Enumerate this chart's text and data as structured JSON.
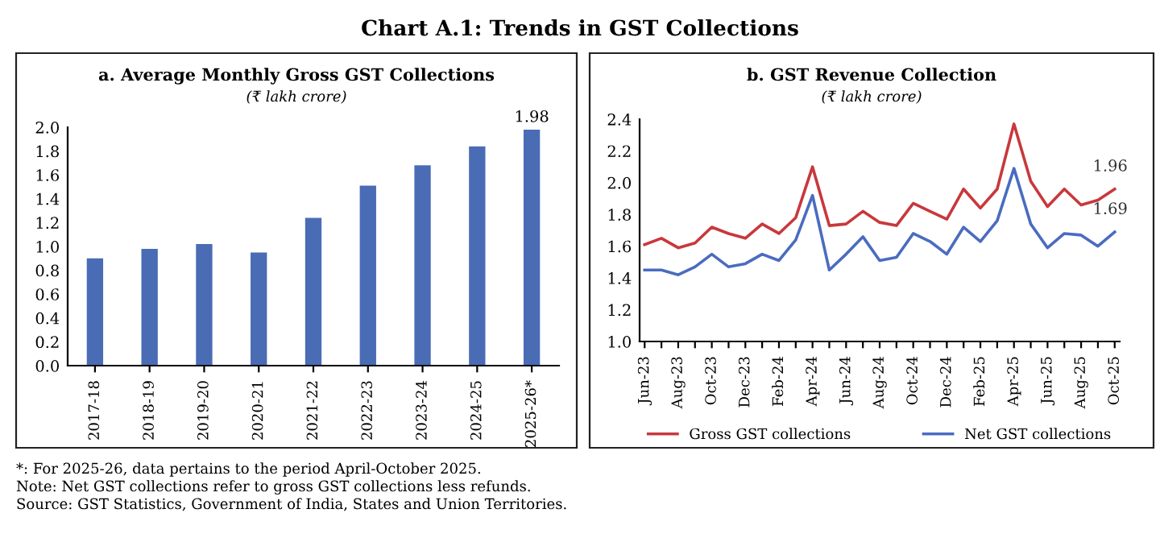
{
  "chart_data": [
    {
      "type": "bar",
      "title": "a. Average Monthly Gross GST Collections",
      "subtitle": "(₹ lakh crore)",
      "categories": [
        "2017-18",
        "2018-19",
        "2019-20",
        "2020-21",
        "2021-22",
        "2022-23",
        "2023-24",
        "2024-25",
        "2025-26*"
      ],
      "values": [
        0.9,
        0.98,
        1.02,
        0.95,
        1.24,
        1.51,
        1.68,
        1.84,
        1.98
      ],
      "value_labels": [
        null,
        null,
        null,
        null,
        null,
        null,
        null,
        null,
        "1.98"
      ],
      "color": "#4a6cb5",
      "ylim": [
        0.0,
        2.0
      ],
      "yticks": [
        {
          "value": 0,
          "label": "0.0"
        },
        0.2,
        0.4,
        0.6,
        0.8,
        {
          "value": 1,
          "label": "1.0"
        },
        1.2,
        1.4,
        1.6,
        1.8,
        {
          "value": 2,
          "label": "2.0"
        }
      ],
      "grid": false,
      "legend": false,
      "annotations": [
        "Chart A.1: Trends in GST Collections",
        "*: For 2025-26, data pertains to the period April-October 2025.",
        "Note: Net GST collections refer to gross GST collections less refunds.",
        "Source: GST Statistics, Government of India, States and Union Territories."
      ]
    },
    {
      "type": "line",
      "title": "b. GST Revenue Collection",
      "subtitle": "(₹ lakh crore)",
      "categories": [
        "Jun-23",
        null,
        "Aug-23",
        null,
        "Oct-23",
        null,
        "Dec-23",
        null,
        "Feb-24",
        null,
        "Apr-24",
        null,
        "Jun-24",
        null,
        "Aug-24",
        null,
        "Oct-24",
        null,
        "Dec-24",
        null,
        "Feb-25",
        null,
        "Apr-25",
        null,
        "Jun-25",
        null,
        "Aug-25",
        null,
        "Oct-25"
      ],
      "series": [
        {
          "name": "Gross GST collections",
          "color": "#c8383c",
          "values": [
            1.61,
            1.65,
            1.59,
            1.62,
            1.72,
            1.68,
            1.65,
            1.74,
            1.68,
            1.78,
            2.1,
            1.73,
            1.74,
            1.82,
            1.75,
            1.73,
            1.87,
            1.82,
            1.77,
            1.96,
            1.84,
            1.96,
            2.37,
            2.01,
            1.85,
            1.96,
            1.86,
            1.89,
            1.96
          ],
          "value_labels": [
            null,
            null,
            null,
            null,
            null,
            null,
            null,
            null,
            null,
            null,
            null,
            null,
            null,
            null,
            null,
            null,
            null,
            null,
            null,
            null,
            null,
            null,
            null,
            null,
            null,
            null,
            null,
            null,
            "1.96"
          ]
        },
        {
          "name": "Net GST collections",
          "color": "#4a6cc0",
          "values": [
            1.45,
            1.45,
            1.42,
            1.47,
            1.55,
            1.47,
            1.49,
            1.55,
            1.51,
            1.64,
            1.92,
            1.45,
            1.55,
            1.66,
            1.51,
            1.53,
            1.68,
            1.63,
            1.55,
            1.72,
            1.63,
            1.76,
            2.09,
            1.74,
            1.59,
            1.68,
            1.67,
            1.6,
            1.69
          ],
          "value_labels": [
            null,
            null,
            null,
            null,
            null,
            null,
            null,
            null,
            null,
            null,
            null,
            null,
            null,
            null,
            null,
            null,
            null,
            null,
            null,
            null,
            null,
            null,
            null,
            null,
            null,
            null,
            null,
            null,
            "1.69"
          ]
        }
      ],
      "ylim": [
        1.0,
        2.4
      ],
      "yticks": [
        {
          "value": 1,
          "label": "1.0"
        },
        1.2,
        1.4,
        1.6,
        1.8,
        {
          "value": 2,
          "label": "2.0"
        },
        2.2,
        2.4
      ],
      "grid": false,
      "legend": "bottom",
      "marker": "none",
      "line_style": "solid"
    }
  ]
}
